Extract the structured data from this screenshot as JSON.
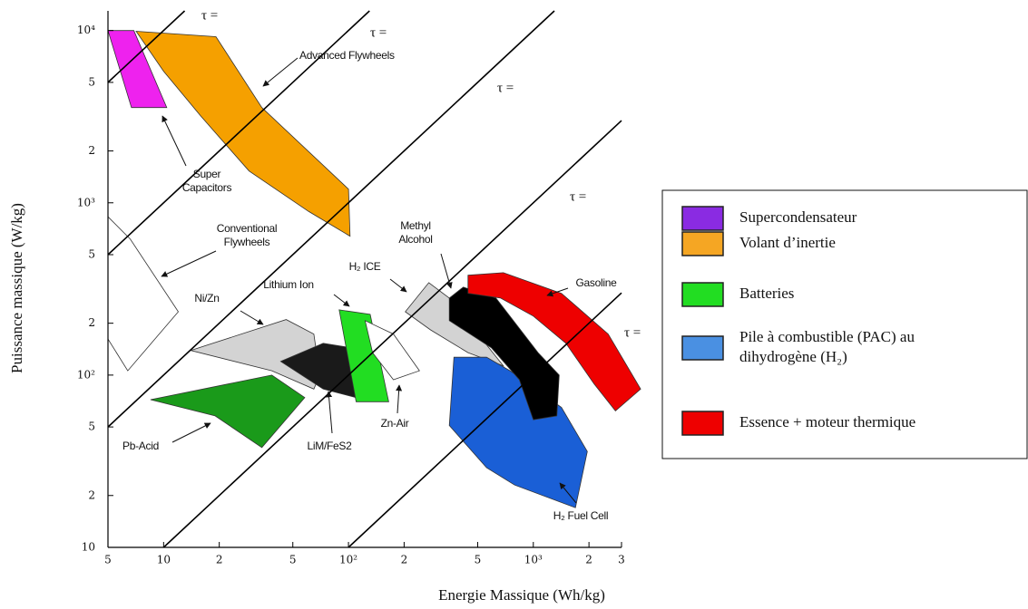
{
  "chart_data": {
    "type": "ragone",
    "x_label": "Energie Massique (Wh/kg)",
    "y_label": "Puissance massique (W/kg)",
    "xscale": "log",
    "yscale": "log",
    "xlim": [
      5,
      3000
    ],
    "ylim": [
      10,
      13000
    ],
    "xticks": [
      5,
      10,
      {
        "value": 20,
        "label": "2"
      },
      {
        "value": 50,
        "label": "5"
      },
      {
        "value": 100,
        "label": "10²"
      },
      {
        "value": 200,
        "label": "2"
      },
      {
        "value": 500,
        "label": "5"
      },
      {
        "value": 1000,
        "label": "10³"
      },
      {
        "value": 2000,
        "label": "2"
      },
      {
        "value": 3000,
        "label": "3"
      }
    ],
    "yticks": [
      10,
      {
        "value": 20,
        "label": "2"
      },
      {
        "value": 50,
        "label": "5"
      },
      {
        "value": 100,
        "label": "10²"
      },
      {
        "value": 200,
        "label": "2"
      },
      {
        "value": 500,
        "label": "5"
      },
      {
        "value": 1000,
        "label": "10³"
      },
      {
        "value": 2000,
        "label": "2"
      },
      {
        "value": 5000,
        "label": "5"
      },
      {
        "value": 10000,
        "label": "10⁴"
      }
    ],
    "tau_lines": [
      {
        "power_per_energy": 1000,
        "label": "τ ="
      },
      {
        "power_per_energy": 100,
        "label": "τ ="
      },
      {
        "power_per_energy": 10,
        "label": "τ ="
      },
      {
        "power_per_energy": 1,
        "label": "τ ="
      },
      {
        "power_per_energy": 0.1,
        "label": "τ ="
      }
    ],
    "regions": [
      {
        "color": "#ee22ee",
        "x": [
          5,
          6.9,
          10.4,
          6.7
        ],
        "y": [
          10000,
          10000,
          3570,
          3570
        ]
      },
      {
        "color": "#f5a000",
        "x": [
          7.1,
          19.2,
          34,
          100,
          102,
          61,
          29,
          16,
          10
        ],
        "y": [
          9900,
          9200,
          3570,
          1200,
          640,
          890,
          1530,
          3160,
          5800
        ]
      },
      {
        "color": "#ffffff",
        "x": [
          5,
          6.6,
          12,
          6.4,
          5
        ],
        "y": [
          830,
          615,
          233,
          106,
          162
        ]
      },
      {
        "color": "#d3d3d3",
        "x": [
          14,
          46,
          65,
          70,
          65,
          38.5
        ],
        "y": [
          139,
          210,
          173,
          100,
          83,
          106
        ]
      },
      {
        "color": "#1a1a1a",
        "x": [
          43,
          73,
          104,
          110,
          73
        ],
        "y": [
          120,
          153,
          144,
          74,
          83
        ]
      },
      {
        "color": "#22dd22",
        "x": [
          89,
          131,
          165,
          110
        ],
        "y": [
          239,
          225,
          70,
          70
        ]
      },
      {
        "color": "#ffffff",
        "x": [
          123,
          175,
          242,
          175,
          135
        ],
        "y": [
          207,
          173,
          106,
          94,
          135
        ]
      },
      {
        "color": "#1a9a1a",
        "x": [
          8.5,
          38.5,
          58,
          34,
          19
        ],
        "y": [
          72,
          100,
          74,
          38,
          58
        ]
      },
      {
        "color": "#d3d3d3",
        "x": [
          203,
          272,
          351,
          689,
          443,
          278
        ],
        "y": [
          233,
          344,
          280,
          113,
          135,
          183
        ]
      },
      {
        "color": "#1a5fd6",
        "x": [
          372,
          559,
          748,
          1420,
          1960,
          1690,
          792,
          559,
          351
        ],
        "y": [
          127,
          127,
          106,
          65,
          36,
          17,
          23,
          29,
          51
        ]
      },
      {
        "color": "#000000",
        "x": [
          351,
          418,
          628,
          1060,
          1380,
          1340,
          1000,
          840,
          593,
          351
        ],
        "y": [
          280,
          324,
          280,
          135,
          100,
          58,
          55,
          94,
          144,
          207
        ]
      },
      {
        "color": "#ee0000",
        "x": [
          443,
          689,
          1420,
          2540,
          3810,
          2780,
          2130,
          1500,
          1000,
          665,
          443
        ],
        "y": [
          380,
          393,
          298,
          173,
          83,
          62,
          89,
          153,
          220,
          280,
          298
        ]
      }
    ],
    "annotations": [
      {
        "lines": [
          "Advanced Flywheels"
        ]
      },
      {
        "lines": [
          "Super",
          "Capacitors"
        ]
      },
      {
        "lines": [
          "Conventional",
          "Flywheels"
        ]
      },
      {
        "lines": [
          "Ni/Zn"
        ]
      },
      {
        "lines": [
          "Lithium Ion"
        ]
      },
      {
        "lines": [
          "H₂ ICE"
        ]
      },
      {
        "lines": [
          "Methyl",
          "Alcohol"
        ]
      },
      {
        "lines": [
          "Gasoline"
        ]
      },
      {
        "lines": [
          "Pb-Acid"
        ]
      },
      {
        "lines": [
          "LiM/FeS2"
        ]
      },
      {
        "lines": [
          "Zn-Air"
        ]
      },
      {
        "lines": [
          "H₂ Fuel Cell"
        ]
      }
    ],
    "legend": [
      {
        "color": "#8a2be2",
        "lines": [
          "Supercondensateur"
        ]
      },
      {
        "color": "#f5a623",
        "lines": [
          "Volant d’inertie"
        ]
      },
      {
        "color": "#22dd22",
        "lines": [
          "Batteries"
        ]
      },
      {
        "color": "#4a90e2",
        "lines": [
          "Pile à combustible (PAC) au",
          "dihydrogène (H₂)"
        ]
      },
      {
        "color": "#ee0000",
        "lines": [
          "Essence  + moteur thermique"
        ]
      }
    ]
  }
}
